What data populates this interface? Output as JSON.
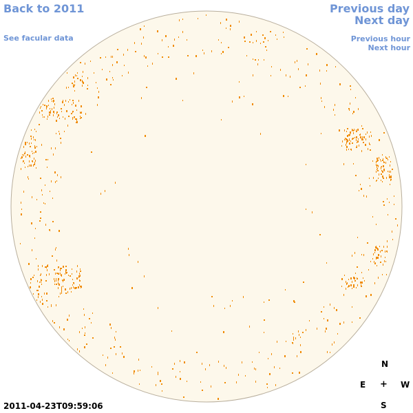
{
  "nav": {
    "back": "Back to 2011",
    "facular": "See facular data",
    "previous_day": "Previous day",
    "next_day": "Next day",
    "previous_hour": "Previous hour",
    "next_hour": "Next hour"
  },
  "timestamp": "2011-04-23T09:59:06",
  "compass": {
    "north": "N",
    "south": "S",
    "east": "E",
    "west": "W",
    "center": "+"
  },
  "colors": {
    "disk_fill": "#fdf8eb",
    "disk_edge": "#b8ae9c",
    "facula": "#f08a00",
    "link": "#6f95d6"
  }
}
